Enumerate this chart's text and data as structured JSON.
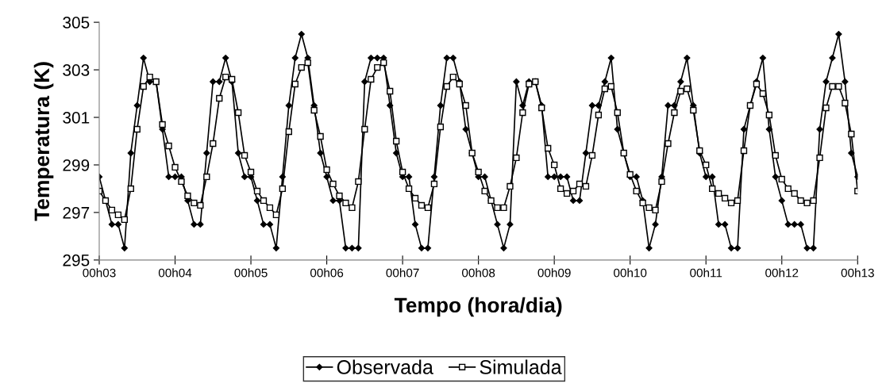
{
  "chart_data": {
    "type": "line",
    "xlabel": "Tempo (hora/dia)",
    "ylabel": "Temperatura (K)",
    "ylim": [
      295,
      305
    ],
    "yticks": [
      295,
      297,
      299,
      301,
      303,
      305
    ],
    "categories": [
      "00h03",
      null,
      null,
      null,
      null,
      null,
      null,
      null,
      null,
      null,
      null,
      null,
      "00h04",
      null,
      null,
      null,
      null,
      null,
      null,
      null,
      null,
      null,
      null,
      null,
      "00h05",
      null,
      null,
      null,
      null,
      null,
      null,
      null,
      null,
      null,
      null,
      null,
      "00h06",
      null,
      null,
      null,
      null,
      null,
      null,
      null,
      null,
      null,
      null,
      null,
      "00h07",
      null,
      null,
      null,
      null,
      null,
      null,
      null,
      null,
      null,
      null,
      null,
      "00h08",
      null,
      null,
      null,
      null,
      null,
      null,
      null,
      null,
      null,
      null,
      null,
      "00h09",
      null,
      null,
      null,
      null,
      null,
      null,
      null,
      null,
      null,
      null,
      null,
      "00h10",
      null,
      null,
      null,
      null,
      null,
      null,
      null,
      null,
      null,
      null,
      null,
      "00h11",
      null,
      null,
      null,
      null,
      null,
      null,
      null,
      null,
      null,
      null,
      null,
      "00h12",
      null,
      null,
      null,
      null,
      null,
      null,
      null,
      null,
      null,
      null,
      null,
      "00h13"
    ],
    "grid": false,
    "legend": "bottom",
    "line_style": "solid",
    "series": [
      {
        "name": "Observada",
        "color": "#000000",
        "marker": "diamond",
        "values": [
          298.5,
          297.5,
          296.5,
          296.5,
          295.5,
          299.5,
          301.5,
          303.5,
          302.5,
          302.5,
          300.5,
          298.5,
          298.5,
          298.5,
          297.5,
          296.5,
          296.5,
          299.5,
          302.5,
          302.5,
          303.5,
          302.5,
          299.5,
          298.5,
          298.5,
          297.5,
          296.5,
          296.5,
          295.5,
          298.5,
          301.5,
          303.5,
          304.5,
          303.5,
          301.5,
          299.5,
          298.5,
          297.5,
          297.5,
          295.5,
          295.5,
          295.5,
          302.5,
          303.5,
          303.5,
          303.5,
          301.5,
          299.5,
          298.5,
          298.5,
          296.5,
          295.5,
          295.5,
          298.5,
          301.5,
          303.5,
          303.5,
          302.5,
          300.5,
          299.5,
          298.5,
          298.5,
          297.5,
          296.5,
          295.5,
          296.5,
          302.5,
          301.5,
          302.5,
          302.5,
          301.5,
          298.5,
          298.5,
          298.5,
          298.5,
          297.5,
          297.5,
          299.5,
          301.5,
          301.5,
          302.5,
          303.5,
          300.5,
          299.5,
          298.5,
          298.5,
          297.5,
          295.5,
          296.5,
          298.5,
          301.5,
          301.5,
          302.5,
          303.5,
          301.5,
          299.5,
          298.5,
          298.5,
          296.5,
          296.5,
          295.5,
          295.5,
          300.5,
          301.5,
          302.5,
          303.5,
          300.5,
          298.5,
          297.5,
          296.5,
          296.5,
          296.5,
          295.5,
          295.5,
          300.5,
          302.5,
          303.5,
          304.5,
          302.5,
          299.5,
          298.5
        ]
      },
      {
        "name": "Simulada",
        "color": "#000000",
        "marker": "square",
        "values": [
          297.9,
          297.5,
          297.1,
          296.9,
          296.7,
          298.0,
          300.5,
          302.3,
          302.7,
          302.5,
          300.7,
          299.8,
          298.9,
          298.3,
          297.7,
          297.4,
          297.3,
          298.5,
          299.9,
          301.8,
          302.7,
          302.6,
          301.2,
          299.4,
          298.7,
          297.9,
          297.5,
          297.2,
          296.9,
          298.0,
          300.4,
          302.4,
          303.1,
          303.3,
          301.3,
          300.2,
          298.8,
          298.2,
          297.7,
          297.4,
          297.2,
          298.3,
          300.5,
          302.6,
          303.1,
          303.3,
          302.1,
          300.0,
          298.7,
          298.0,
          297.6,
          297.3,
          297.2,
          298.2,
          300.6,
          302.3,
          302.7,
          302.4,
          301.5,
          299.5,
          298.7,
          297.9,
          297.5,
          297.2,
          297.2,
          298.1,
          299.3,
          301.2,
          302.4,
          302.5,
          301.4,
          299.7,
          299.0,
          298.0,
          297.8,
          297.9,
          298.2,
          298.1,
          299.4,
          301.1,
          302.2,
          302.3,
          301.2,
          299.5,
          298.6,
          297.9,
          297.4,
          297.2,
          297.1,
          298.3,
          299.9,
          301.2,
          302.1,
          302.2,
          301.3,
          299.6,
          299.0,
          298.0,
          297.8,
          297.6,
          297.4,
          297.5,
          299.6,
          301.5,
          302.4,
          302.0,
          301.1,
          299.4,
          298.4,
          298.0,
          297.8,
          297.5,
          297.4,
          297.5,
          299.3,
          301.4,
          302.3,
          302.3,
          301.6,
          300.3,
          297.9
        ]
      }
    ]
  }
}
